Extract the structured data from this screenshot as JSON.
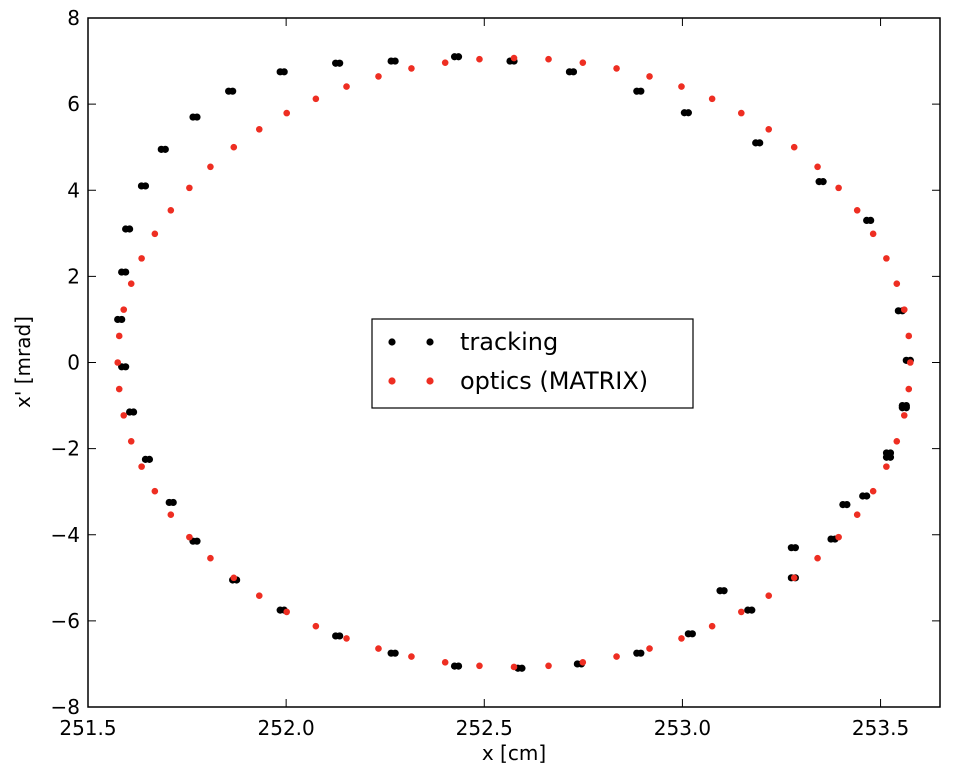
{
  "chart_data": {
    "type": "scatter",
    "title": "",
    "xlabel": "x [cm]",
    "ylabel": "x' [mrad]",
    "xlim": [
      251.5,
      253.65
    ],
    "ylim": [
      -8,
      8
    ],
    "xticks": [
      {
        "value": 251.5,
        "label": "251.5"
      },
      {
        "value": 252.0,
        "label": "252.0"
      },
      {
        "value": 252.5,
        "label": "252.5"
      },
      {
        "value": 253.0,
        "label": "253.0"
      },
      {
        "value": 253.5,
        "label": "253.5"
      }
    ],
    "yticks": [
      {
        "value": -8,
        "label": "−8"
      },
      {
        "value": -6,
        "label": "−6"
      },
      {
        "value": -4,
        "label": "−4"
      },
      {
        "value": -2,
        "label": "−2"
      },
      {
        "value": 0,
        "label": "0"
      },
      {
        "value": 2,
        "label": "2"
      },
      {
        "value": 4,
        "label": "4"
      },
      {
        "value": 6,
        "label": "6"
      },
      {
        "value": 8,
        "label": "8"
      }
    ],
    "grid": false,
    "legend_position": "center",
    "series": [
      {
        "name": "tracking",
        "color": "#000000",
        "x": [
          253.57,
          253.56,
          253.55,
          253.52,
          253.47,
          253.41,
          253.35,
          253.28,
          253.19,
          253.1,
          253.01,
          252.89,
          252.72,
          252.57,
          252.43,
          252.27,
          252.13,
          251.99,
          251.86,
          251.77,
          251.69,
          251.64,
          251.6,
          251.59,
          251.58,
          251.59,
          251.61,
          251.65,
          251.71,
          251.77,
          251.87,
          251.99,
          252.13,
          252.27,
          252.43,
          252.59,
          252.74,
          252.89,
          253.02,
          253.17,
          253.28,
          253.38,
          253.46,
          253.52,
          253.56
        ],
        "y": [
          0.05,
          -1.0,
          1.2,
          -2.2,
          3.3,
          -3.3,
          4.2,
          -4.3,
          5.1,
          -5.3,
          5.8,
          6.3,
          6.75,
          7.0,
          7.1,
          7.0,
          6.95,
          6.75,
          6.3,
          5.7,
          4.95,
          4.1,
          3.1,
          2.1,
          1.0,
          -0.1,
          -1.15,
          -2.25,
          -3.25,
          -4.15,
          -5.05,
          -5.75,
          -6.35,
          -6.75,
          -7.05,
          -7.1,
          -7.0,
          -6.75,
          -6.3,
          -5.75,
          -5.0,
          -4.1,
          -3.1,
          -2.1,
          -1.05
        ]
      },
      {
        "name": "optics (MATRIX)",
        "color": "#ee2e22",
        "ellipse": {
          "x_center": 252.575,
          "y_center": 0.0,
          "x_half_width": 1.0,
          "y_half_height": 7.07,
          "points": 72
        }
      }
    ]
  }
}
